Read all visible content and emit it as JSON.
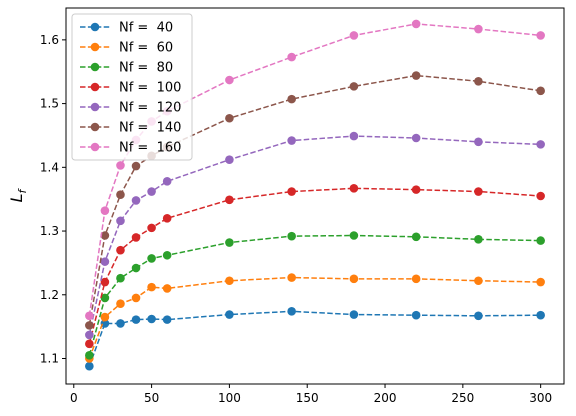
{
  "chart_data": {
    "type": "line",
    "title": "",
    "xlabel": "",
    "ylabel": "L",
    "ylabel_subscript": "f",
    "xlim": [
      -5,
      315
    ],
    "ylim": [
      1.06,
      1.65
    ],
    "xticks": [
      0,
      50,
      100,
      150,
      200,
      250,
      300
    ],
    "yticks": [
      1.1,
      1.2,
      1.3,
      1.4,
      1.5,
      1.6
    ],
    "ytick_labels": [
      "1.1",
      "1.2",
      "1.3",
      "1.4",
      "1.5",
      "1.6"
    ],
    "grid": false,
    "legend_position": "upper-left",
    "line_style": "dashed",
    "marker": "circle",
    "x": [
      10,
      20,
      30,
      40,
      50,
      60,
      100,
      140,
      180,
      220,
      260,
      300
    ],
    "series": [
      {
        "name": "Nf =  40",
        "color": "#1f77b4",
        "values": [
          1.088,
          1.155,
          1.155,
          1.161,
          1.162,
          1.161,
          1.169,
          1.174,
          1.169,
          1.168,
          1.167,
          1.168
        ]
      },
      {
        "name": "Nf =  60",
        "color": "#ff7f0e",
        "values": [
          1.1,
          1.165,
          1.186,
          1.195,
          1.212,
          1.21,
          1.222,
          1.227,
          1.225,
          1.225,
          1.222,
          1.22
        ]
      },
      {
        "name": "Nf =  80",
        "color": "#2ca02c",
        "values": [
          1.105,
          1.195,
          1.226,
          1.242,
          1.257,
          1.262,
          1.282,
          1.292,
          1.293,
          1.291,
          1.287,
          1.285
        ]
      },
      {
        "name": "Nf =  100",
        "color": "#d62728",
        "values": [
          1.123,
          1.22,
          1.27,
          1.29,
          1.305,
          1.32,
          1.349,
          1.362,
          1.367,
          1.365,
          1.362,
          1.355
        ]
      },
      {
        "name": "Nf =  120",
        "color": "#9467bd",
        "values": [
          1.137,
          1.252,
          1.316,
          1.348,
          1.362,
          1.378,
          1.412,
          1.442,
          1.449,
          1.446,
          1.44,
          1.436
        ]
      },
      {
        "name": "Nf =  140",
        "color": "#8c564b",
        "values": [
          1.152,
          1.293,
          1.357,
          1.402,
          1.418,
          1.432,
          1.477,
          1.507,
          1.527,
          1.544,
          1.535,
          1.52
        ]
      },
      {
        "name": "Nf =  160",
        "color": "#e377c2",
        "values": [
          1.167,
          1.332,
          1.403,
          1.443,
          1.472,
          1.488,
          1.537,
          1.573,
          1.607,
          1.625,
          1.617,
          1.607
        ]
      }
    ]
  }
}
